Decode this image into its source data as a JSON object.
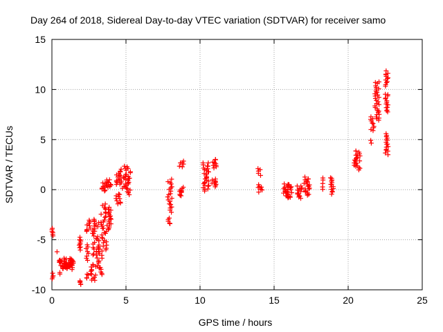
{
  "chart_data": {
    "type": "scatter",
    "title": "Day 264 of 2018, Sidereal Day-to-day VTEC variation (SDTVAR) for receiver samo",
    "xlabel": "GPS time / hours",
    "ylabel": "SDTVAR / TECUs",
    "xlim": [
      0,
      25
    ],
    "ylim": [
      -10,
      15
    ],
    "x_ticks": [
      0,
      5,
      10,
      15,
      20,
      25
    ],
    "y_ticks": [
      -10,
      -5,
      0,
      5,
      10,
      15
    ],
    "grid": true,
    "marker": "plus",
    "series_color": "#ff0000",
    "clusters": [
      {
        "x": [
          0.0,
          0.1
        ],
        "y": [
          -4.6,
          -3.9
        ],
        "n": 6
      },
      {
        "x": [
          0.0,
          0.15
        ],
        "y": [
          -8.9,
          -8.4
        ],
        "n": 4
      },
      {
        "x": [
          0.45,
          0.55
        ],
        "y": [
          -8.5,
          -8.3
        ],
        "n": 2
      },
      {
        "x": [
          0.3,
          0.35
        ],
        "y": [
          -6.2,
          -6.0
        ],
        "n": 1
      },
      {
        "x": [
          0.45,
          1.45
        ],
        "y": [
          -7.9,
          -6.9
        ],
        "n": 60
      },
      {
        "x": [
          1.75,
          1.95
        ],
        "y": [
          -9.5,
          -9.1
        ],
        "n": 5
      },
      {
        "x": [
          1.75,
          1.95
        ],
        "y": [
          -6.0,
          -4.8
        ],
        "n": 10
      },
      {
        "x": [
          2.3,
          2.45
        ],
        "y": [
          -8.9,
          -8.4
        ],
        "n": 4
      },
      {
        "x": [
          2.3,
          2.5
        ],
        "y": [
          -7.0,
          -5.5
        ],
        "n": 8
      },
      {
        "x": [
          2.3,
          2.6
        ],
        "y": [
          -4.2,
          -3.0
        ],
        "n": 10
      },
      {
        "x": [
          2.6,
          3.0
        ],
        "y": [
          -9.1,
          -7.4
        ],
        "n": 14
      },
      {
        "x": [
          2.7,
          3.2
        ],
        "y": [
          -6.6,
          -2.9
        ],
        "n": 32
      },
      {
        "x": [
          3.0,
          3.4
        ],
        "y": [
          -8.5,
          -5.8
        ],
        "n": 18
      },
      {
        "x": [
          3.3,
          3.7
        ],
        "y": [
          -6.0,
          -1.4
        ],
        "n": 30
      },
      {
        "x": [
          3.3,
          3.7
        ],
        "y": [
          -0.2,
          0.7
        ],
        "n": 10
      },
      {
        "x": [
          3.7,
          4.0
        ],
        "y": [
          -4.0,
          -1.8
        ],
        "n": 18
      },
      {
        "x": [
          3.7,
          4.0
        ],
        "y": [
          0.2,
          1.0
        ],
        "n": 10
      },
      {
        "x": [
          4.3,
          4.7
        ],
        "y": [
          0.5,
          1.6
        ],
        "n": 12
      },
      {
        "x": [
          4.3,
          4.7
        ],
        "y": [
          -1.4,
          -0.4
        ],
        "n": 10
      },
      {
        "x": [
          4.6,
          5.0
        ],
        "y": [
          0.1,
          2.3
        ],
        "n": 16
      },
      {
        "x": [
          5.0,
          5.3
        ],
        "y": [
          -0.5,
          2.2
        ],
        "n": 20
      },
      {
        "x": [
          7.8,
          8.1
        ],
        "y": [
          -2.2,
          1.0
        ],
        "n": 20
      },
      {
        "x": [
          7.85,
          8.05
        ],
        "y": [
          -3.4,
          -2.9
        ],
        "n": 5
      },
      {
        "x": [
          8.6,
          8.9
        ],
        "y": [
          -0.6,
          0.2
        ],
        "n": 10
      },
      {
        "x": [
          8.6,
          8.9
        ],
        "y": [
          2.3,
          2.8
        ],
        "n": 6
      },
      {
        "x": [
          10.2,
          10.6
        ],
        "y": [
          -0.1,
          2.7
        ],
        "n": 30
      },
      {
        "x": [
          10.8,
          11.1
        ],
        "y": [
          0.3,
          1.1
        ],
        "n": 10
      },
      {
        "x": [
          10.85,
          11.1
        ],
        "y": [
          2.2,
          3.0
        ],
        "n": 10
      },
      {
        "x": [
          13.9,
          14.1
        ],
        "y": [
          1.5,
          2.1
        ],
        "n": 5
      },
      {
        "x": [
          13.9,
          14.2
        ],
        "y": [
          -0.2,
          0.5
        ],
        "n": 7
      },
      {
        "x": [
          15.6,
          16.2
        ],
        "y": [
          -0.8,
          0.6
        ],
        "n": 30
      },
      {
        "x": [
          16.5,
          16.9
        ],
        "y": [
          -0.8,
          0.4
        ],
        "n": 15
      },
      {
        "x": [
          17.0,
          17.4
        ],
        "y": [
          -0.6,
          1.2
        ],
        "n": 22
      },
      {
        "x": [
          18.2,
          18.3
        ],
        "y": [
          0.0,
          1.2
        ],
        "n": 5
      },
      {
        "x": [
          18.8,
          19.0
        ],
        "y": [
          -0.4,
          1.2
        ],
        "n": 14
      },
      {
        "x": [
          20.4,
          20.8
        ],
        "y": [
          2.0,
          3.9
        ],
        "n": 22
      },
      {
        "x": [
          21.5,
          21.7
        ],
        "y": [
          4.6,
          4.9
        ],
        "n": 2
      },
      {
        "x": [
          21.5,
          21.8
        ],
        "y": [
          5.9,
          7.3
        ],
        "n": 10
      },
      {
        "x": [
          21.8,
          22.1
        ],
        "y": [
          6.9,
          10.8
        ],
        "n": 30
      },
      {
        "x": [
          22.5,
          22.7
        ],
        "y": [
          3.5,
          5.6
        ],
        "n": 16
      },
      {
        "x": [
          22.5,
          22.7
        ],
        "y": [
          7.7,
          9.6
        ],
        "n": 14
      },
      {
        "x": [
          22.5,
          22.7
        ],
        "y": [
          10.4,
          11.8
        ],
        "n": 12
      }
    ]
  }
}
